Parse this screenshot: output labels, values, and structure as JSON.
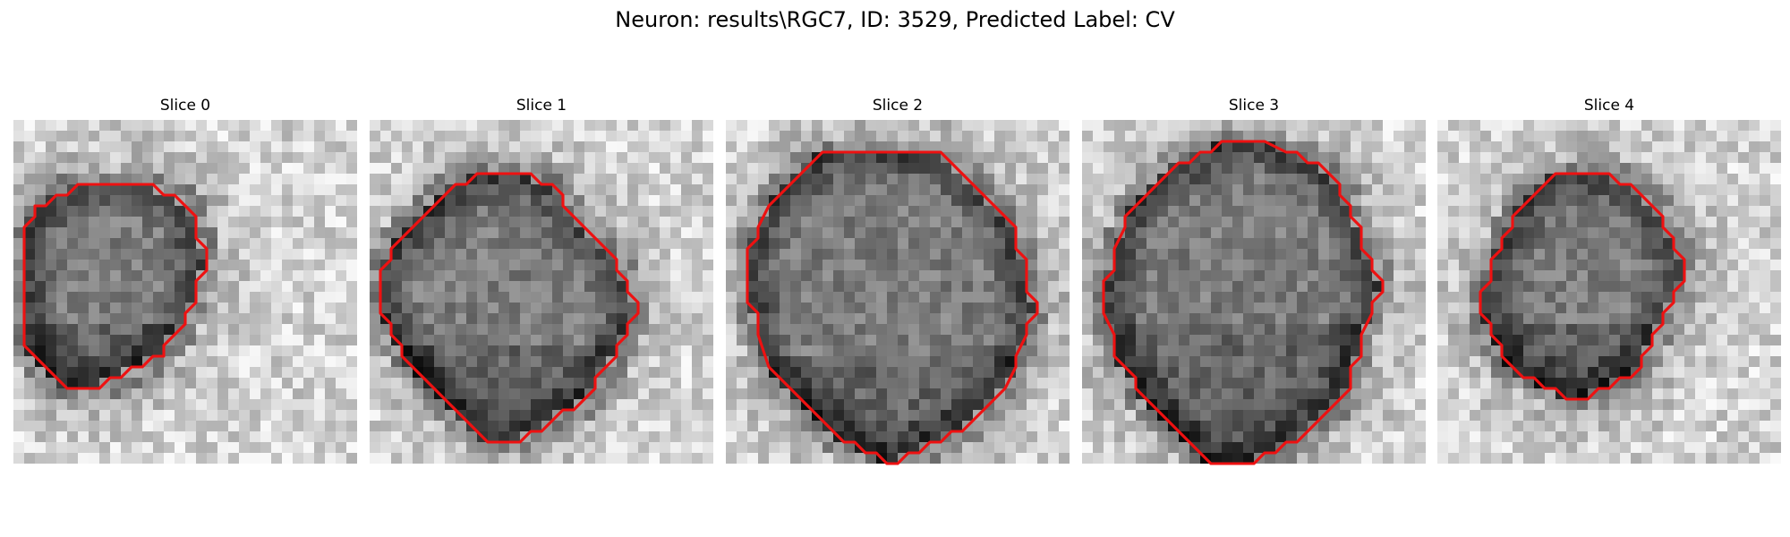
{
  "figure": {
    "title": "Neuron: results\\RGC7, ID: 3529, Predicted Label: CV"
  },
  "colors": {
    "contour": "#ee1111",
    "colormap": "gray"
  },
  "slices": [
    {
      "title": "Slice 0",
      "contour": [
        [
          8,
          6
        ],
        [
          13,
          6
        ],
        [
          14,
          7
        ],
        [
          15,
          7
        ],
        [
          17,
          9
        ],
        [
          17,
          11
        ],
        [
          18,
          12
        ],
        [
          18,
          14
        ],
        [
          17,
          15
        ],
        [
          17,
          17
        ],
        [
          16,
          18
        ],
        [
          16,
          19
        ],
        [
          14,
          21
        ],
        [
          14,
          22
        ],
        [
          13,
          22
        ],
        [
          12,
          23
        ],
        [
          11,
          23
        ],
        [
          10,
          24
        ],
        [
          9,
          24
        ],
        [
          8,
          25
        ],
        [
          7,
          25
        ],
        [
          6,
          25
        ],
        [
          5,
          25
        ],
        [
          4,
          24
        ],
        [
          3,
          23
        ],
        [
          2,
          22
        ],
        [
          1,
          21
        ],
        [
          1,
          16
        ],
        [
          1,
          11
        ],
        [
          1,
          10
        ],
        [
          2,
          9
        ],
        [
          2,
          8
        ],
        [
          3,
          8
        ],
        [
          4,
          7
        ],
        [
          5,
          7
        ],
        [
          6,
          6
        ]
      ]
    },
    {
      "title": "Slice 1",
      "contour": [
        [
          11,
          5
        ],
        [
          15,
          5
        ],
        [
          16,
          6
        ],
        [
          17,
          6
        ],
        [
          18,
          7
        ],
        [
          18,
          8
        ],
        [
          19,
          9
        ],
        [
          20,
          10
        ],
        [
          21,
          11
        ],
        [
          22,
          12
        ],
        [
          23,
          13
        ],
        [
          23,
          14
        ],
        [
          24,
          15
        ],
        [
          24,
          16
        ],
        [
          25,
          17
        ],
        [
          25,
          18
        ],
        [
          24,
          19
        ],
        [
          24,
          20
        ],
        [
          23,
          21
        ],
        [
          23,
          22
        ],
        [
          22,
          23
        ],
        [
          21,
          24
        ],
        [
          21,
          25
        ],
        [
          20,
          26
        ],
        [
          19,
          27
        ],
        [
          18,
          27
        ],
        [
          17,
          28
        ],
        [
          16,
          29
        ],
        [
          15,
          29
        ],
        [
          14,
          30
        ],
        [
          13,
          30
        ],
        [
          12,
          30
        ],
        [
          11,
          30
        ],
        [
          10,
          29
        ],
        [
          9,
          28
        ],
        [
          8,
          27
        ],
        [
          7,
          26
        ],
        [
          6,
          25
        ],
        [
          5,
          24
        ],
        [
          4,
          23
        ],
        [
          3,
          22
        ],
        [
          3,
          21
        ],
        [
          2,
          20
        ],
        [
          2,
          19
        ],
        [
          1,
          18
        ],
        [
          1,
          17
        ],
        [
          1,
          14
        ],
        [
          2,
          13
        ],
        [
          2,
          12
        ],
        [
          3,
          11
        ],
        [
          4,
          10
        ],
        [
          5,
          9
        ],
        [
          6,
          8
        ],
        [
          7,
          7
        ],
        [
          8,
          6
        ],
        [
          9,
          6
        ],
        [
          10,
          5
        ]
      ]
    },
    {
      "title": "Slice 2",
      "contour": [
        [
          10,
          3
        ],
        [
          20,
          3
        ],
        [
          21,
          4
        ],
        [
          22,
          5
        ],
        [
          23,
          6
        ],
        [
          24,
          7
        ],
        [
          25,
          8
        ],
        [
          26,
          9
        ],
        [
          27,
          10
        ],
        [
          27,
          12
        ],
        [
          28,
          13
        ],
        [
          28,
          16
        ],
        [
          29,
          17
        ],
        [
          29,
          18
        ],
        [
          28,
          19
        ],
        [
          28,
          20
        ],
        [
          27,
          22
        ],
        [
          27,
          23
        ],
        [
          26,
          25
        ],
        [
          25,
          26
        ],
        [
          24,
          27
        ],
        [
          23,
          28
        ],
        [
          22,
          29
        ],
        [
          21,
          29
        ],
        [
          20,
          30
        ],
        [
          19,
          30
        ],
        [
          18,
          31
        ],
        [
          17,
          31
        ],
        [
          16,
          32
        ],
        [
          15,
          32
        ],
        [
          14,
          31
        ],
        [
          13,
          31
        ],
        [
          12,
          30
        ],
        [
          11,
          30
        ],
        [
          10,
          29
        ],
        [
          9,
          28
        ],
        [
          8,
          27
        ],
        [
          7,
          26
        ],
        [
          6,
          25
        ],
        [
          5,
          24
        ],
        [
          4,
          23
        ],
        [
          3,
          20
        ],
        [
          3,
          18
        ],
        [
          2,
          17
        ],
        [
          2,
          12
        ],
        [
          3,
          11
        ],
        [
          3,
          10
        ],
        [
          4,
          8
        ],
        [
          5,
          7
        ],
        [
          6,
          6
        ],
        [
          7,
          5
        ],
        [
          8,
          4
        ],
        [
          9,
          3
        ]
      ]
    },
    {
      "title": "Slice 3",
      "contour": [
        [
          15,
          2
        ],
        [
          17,
          2
        ],
        [
          19,
          3
        ],
        [
          20,
          3
        ],
        [
          21,
          4
        ],
        [
          22,
          4
        ],
        [
          23,
          5
        ],
        [
          24,
          6
        ],
        [
          24,
          7
        ],
        [
          25,
          8
        ],
        [
          25,
          9
        ],
        [
          26,
          10
        ],
        [
          26,
          12
        ],
        [
          27,
          13
        ],
        [
          27,
          14
        ],
        [
          28,
          15
        ],
        [
          28,
          16
        ],
        [
          27,
          17
        ],
        [
          27,
          18
        ],
        [
          26,
          20
        ],
        [
          26,
          22
        ],
        [
          25,
          23
        ],
        [
          25,
          25
        ],
        [
          24,
          26
        ],
        [
          23,
          27
        ],
        [
          22,
          28
        ],
        [
          21,
          29
        ],
        [
          20,
          30
        ],
        [
          19,
          30
        ],
        [
          18,
          31
        ],
        [
          17,
          31
        ],
        [
          16,
          32
        ],
        [
          13,
          32
        ],
        [
          12,
          32
        ],
        [
          11,
          31
        ],
        [
          10,
          30
        ],
        [
          9,
          29
        ],
        [
          8,
          28
        ],
        [
          7,
          27
        ],
        [
          6,
          26
        ],
        [
          5,
          25
        ],
        [
          5,
          24
        ],
        [
          4,
          23
        ],
        [
          3,
          22
        ],
        [
          3,
          20
        ],
        [
          2,
          18
        ],
        [
          2,
          15
        ],
        [
          3,
          14
        ],
        [
          3,
          12
        ],
        [
          4,
          10
        ],
        [
          4,
          9
        ],
        [
          5,
          8
        ],
        [
          6,
          7
        ],
        [
          7,
          6
        ],
        [
          8,
          5
        ],
        [
          9,
          4
        ],
        [
          10,
          4
        ],
        [
          11,
          3
        ],
        [
          12,
          3
        ],
        [
          13,
          2
        ],
        [
          14,
          2
        ]
      ]
    },
    {
      "title": "Slice 4",
      "contour": [
        [
          14,
          5
        ],
        [
          16,
          5
        ],
        [
          17,
          6
        ],
        [
          18,
          6
        ],
        [
          19,
          7
        ],
        [
          20,
          8
        ],
        [
          21,
          9
        ],
        [
          21,
          10
        ],
        [
          22,
          11
        ],
        [
          22,
          12
        ],
        [
          23,
          13
        ],
        [
          23,
          15
        ],
        [
          22,
          16
        ],
        [
          22,
          17
        ],
        [
          21,
          18
        ],
        [
          21,
          19
        ],
        [
          20,
          20
        ],
        [
          20,
          21
        ],
        [
          19,
          22
        ],
        [
          19,
          23
        ],
        [
          18,
          24
        ],
        [
          17,
          24
        ],
        [
          16,
          25
        ],
        [
          15,
          25
        ],
        [
          14,
          26
        ],
        [
          13,
          26
        ],
        [
          12,
          26
        ],
        [
          11,
          25
        ],
        [
          10,
          25
        ],
        [
          9,
          24
        ],
        [
          8,
          24
        ],
        [
          7,
          23
        ],
        [
          6,
          22
        ],
        [
          6,
          21
        ],
        [
          5,
          20
        ],
        [
          5,
          19
        ],
        [
          4,
          18
        ],
        [
          4,
          16
        ],
        [
          5,
          15
        ],
        [
          5,
          13
        ],
        [
          6,
          12
        ],
        [
          6,
          11
        ],
        [
          7,
          10
        ],
        [
          7,
          9
        ],
        [
          8,
          8
        ],
        [
          9,
          7
        ],
        [
          10,
          6
        ],
        [
          11,
          5
        ]
      ]
    }
  ]
}
